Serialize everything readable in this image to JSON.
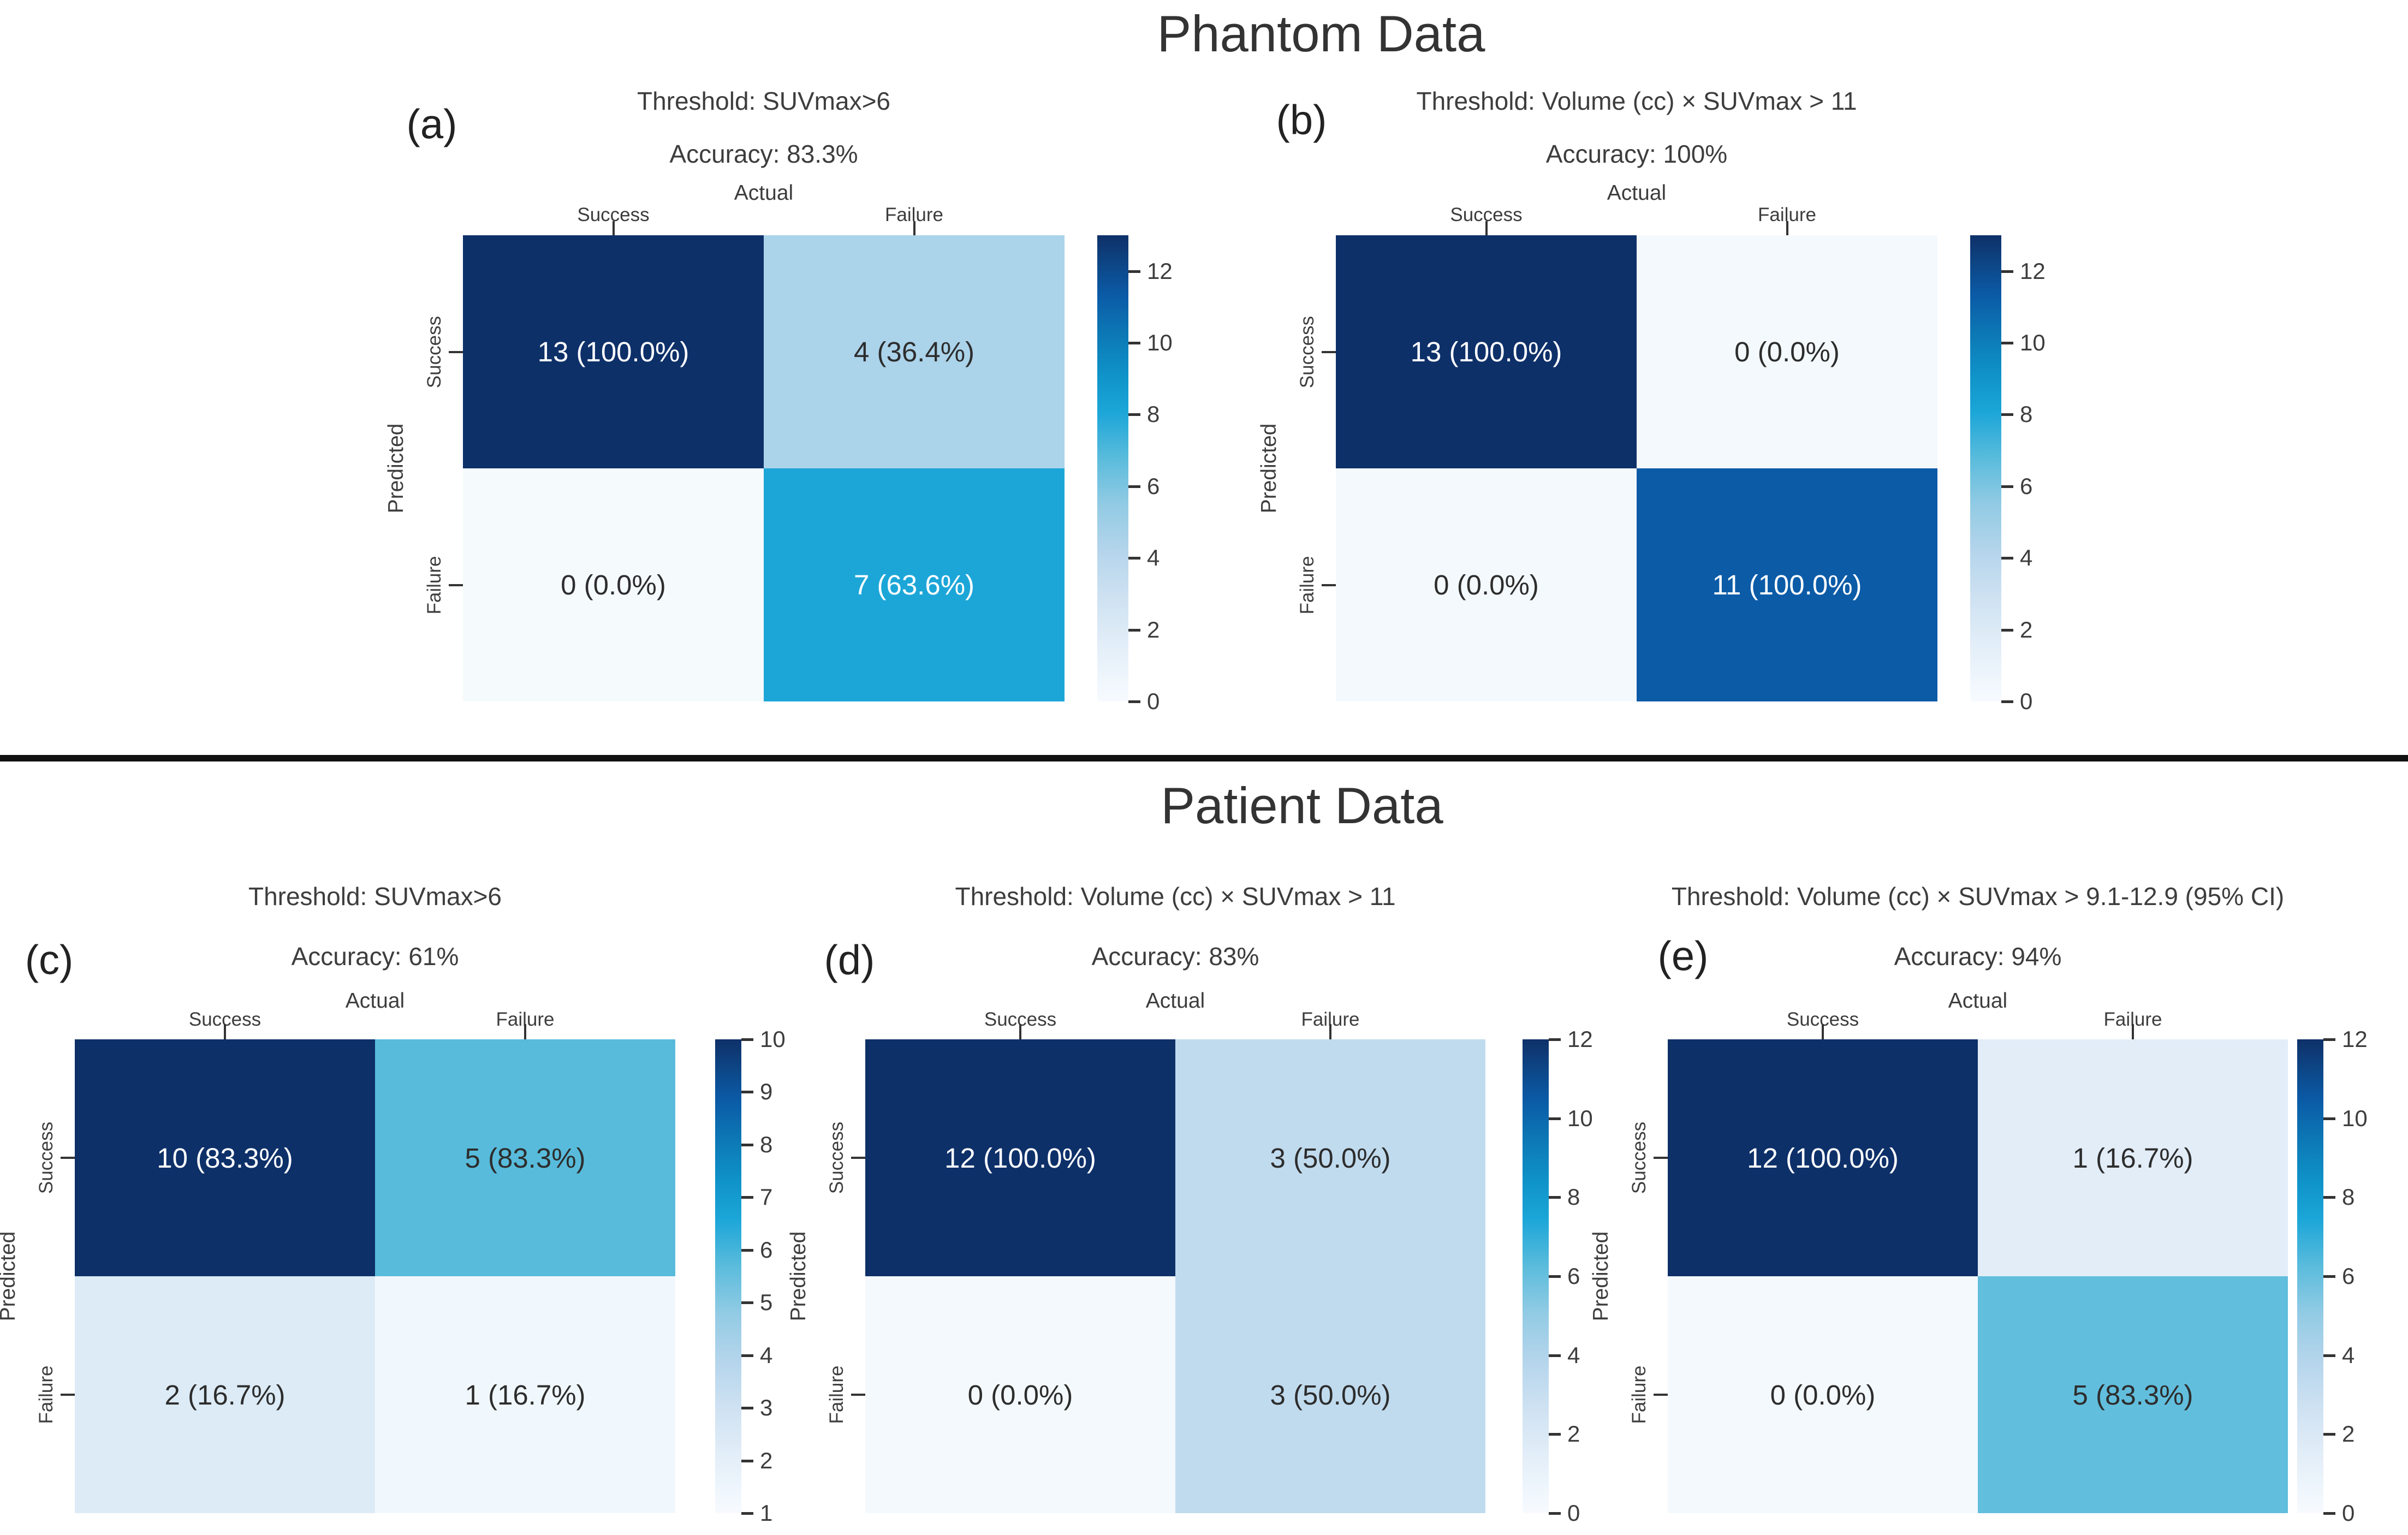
{
  "sections": [
    {
      "title": "Phantom Data"
    },
    {
      "title": "Patient Data"
    }
  ],
  "axis": {
    "actual": "Actual",
    "predicted": "Predicted",
    "col_labels": [
      "Success",
      "Failure"
    ],
    "row_labels": [
      "Success",
      "Failure"
    ]
  },
  "panels": [
    {
      "id": "a",
      "label": "(a)",
      "threshold": "Threshold: SUVmax>6",
      "accuracy": "Accuracy: 83.3%",
      "cells": [
        [
          {
            "text": "13 (100.0%)",
            "bg": "#0e3069",
            "fg": "#ffffff"
          },
          {
            "text": "4 (36.4%)",
            "bg": "#abd3ea",
            "fg": "#2d2d2d"
          }
        ],
        [
          {
            "text": "0 (0.0%)",
            "bg": "#f5fafd",
            "fg": "#2d2d2d"
          },
          {
            "text": "7 (63.6%)",
            "bg": "#1ca6d8",
            "fg": "#ffffff"
          }
        ]
      ],
      "colorbar": {
        "top_value": 13,
        "bottom_value": 0,
        "ticks": [
          12,
          10,
          8,
          6,
          4,
          2,
          0
        ]
      }
    },
    {
      "id": "b",
      "label": "(b)",
      "threshold": "Threshold: Volume (cc) × SUVmax > 11",
      "accuracy": "Accuracy: 100%",
      "cells": [
        [
          {
            "text": "13 (100.0%)",
            "bg": "#0e3069",
            "fg": "#ffffff"
          },
          {
            "text": "0 (0.0%)",
            "bg": "#f4f9fd",
            "fg": "#2d2d2d"
          }
        ],
        [
          {
            "text": "0 (0.0%)",
            "bg": "#f4f9fd",
            "fg": "#2d2d2d"
          },
          {
            "text": "11 (100.0%)",
            "bg": "#0b5ba7",
            "fg": "#ffffff"
          }
        ]
      ],
      "colorbar": {
        "top_value": 13,
        "bottom_value": 0,
        "ticks": [
          12,
          10,
          8,
          6,
          4,
          2,
          0
        ]
      }
    },
    {
      "id": "c",
      "label": "(c)",
      "threshold": "Threshold: SUVmax>6",
      "accuracy": "Accuracy: 61%",
      "cells": [
        [
          {
            "text": "10 (83.3%)",
            "bg": "#0e3069",
            "fg": "#ffffff"
          },
          {
            "text": "5 (83.3%)",
            "bg": "#58bbdb",
            "fg": "#2d2d2d"
          }
        ],
        [
          {
            "text": "2 (16.7%)",
            "bg": "#dcebf6",
            "fg": "#2d2d2d"
          },
          {
            "text": "1 (16.7%)",
            "bg": "#f1f8fd",
            "fg": "#2d2d2d"
          }
        ]
      ],
      "colorbar": {
        "top_value": 10,
        "bottom_value": 1,
        "ticks": [
          10,
          9,
          8,
          7,
          6,
          5,
          4,
          3,
          2,
          1
        ]
      }
    },
    {
      "id": "d",
      "label": "(d)",
      "threshold": "Threshold: Volume (cc) × SUVmax > 11",
      "accuracy": "Accuracy: 83%",
      "cells": [
        [
          {
            "text": "12 (100.0%)",
            "bg": "#0e3069",
            "fg": "#ffffff"
          },
          {
            "text": "3 (50.0%)",
            "bg": "#c1dbee",
            "fg": "#2d2d2d"
          }
        ],
        [
          {
            "text": "0 (0.0%)",
            "bg": "#f4f9fd",
            "fg": "#2d2d2d"
          },
          {
            "text": "3 (50.0%)",
            "bg": "#c1dbee",
            "fg": "#2d2d2d"
          }
        ]
      ],
      "colorbar": {
        "top_value": 12,
        "bottom_value": 0,
        "ticks": [
          12,
          10,
          8,
          6,
          4,
          2,
          0
        ]
      }
    },
    {
      "id": "e",
      "label": "(e)",
      "threshold": "Threshold: Volume (cc) × SUVmax > 9.1-12.9 (95% CI)",
      "accuracy": "Accuracy: 94%",
      "cells": [
        [
          {
            "text": "12 (100.0%)",
            "bg": "#0e3069",
            "fg": "#ffffff"
          },
          {
            "text": "1 (16.7%)",
            "bg": "#e2edf8",
            "fg": "#2d2d2d"
          }
        ],
        [
          {
            "text": "0 (0.0%)",
            "bg": "#f4f9fd",
            "fg": "#2d2d2d"
          },
          {
            "text": "5 (83.3%)",
            "bg": "#62bedd",
            "fg": "#2d2d2d"
          }
        ]
      ],
      "colorbar": {
        "top_value": 12,
        "bottom_value": 0,
        "ticks": [
          12,
          10,
          8,
          6,
          4,
          2,
          0
        ]
      }
    }
  ],
  "chart_data": [
    {
      "type": "heatmap",
      "panel": "(a)",
      "section": "Phantom Data",
      "title": "Threshold: SUVmax>6",
      "subtitle": "Accuracy: 83.3%",
      "xlabel": "Actual",
      "ylabel": "Predicted",
      "x_categories": [
        "Success",
        "Failure"
      ],
      "y_categories": [
        "Success",
        "Failure"
      ],
      "values": [
        [
          13,
          4
        ],
        [
          0,
          7
        ]
      ],
      "cell_labels": [
        [
          "13 (100.0%)",
          "4 (36.4%)"
        ],
        [
          "0 (0.0%)",
          "7 (63.6%)"
        ]
      ],
      "colorbar": {
        "vmin": 0,
        "vmax": 13,
        "ticks": [
          0,
          2,
          4,
          6,
          8,
          10,
          12
        ]
      },
      "colormap": [
        "#f7fbff",
        "#1ca6d8",
        "#0e3069"
      ]
    },
    {
      "type": "heatmap",
      "panel": "(b)",
      "section": "Phantom Data",
      "title": "Threshold: Volume (cc) × SUVmax > 11",
      "subtitle": "Accuracy: 100%",
      "xlabel": "Actual",
      "ylabel": "Predicted",
      "x_categories": [
        "Success",
        "Failure"
      ],
      "y_categories": [
        "Success",
        "Failure"
      ],
      "values": [
        [
          13,
          0
        ],
        [
          0,
          11
        ]
      ],
      "cell_labels": [
        [
          "13 (100.0%)",
          "0 (0.0%)"
        ],
        [
          "0 (0.0%)",
          "11 (100.0%)"
        ]
      ],
      "colorbar": {
        "vmin": 0,
        "vmax": 13,
        "ticks": [
          0,
          2,
          4,
          6,
          8,
          10,
          12
        ]
      },
      "colormap": [
        "#f7fbff",
        "#1ca6d8",
        "#0e3069"
      ]
    },
    {
      "type": "heatmap",
      "panel": "(c)",
      "section": "Patient Data",
      "title": "Threshold: SUVmax>6",
      "subtitle": "Accuracy: 61%",
      "xlabel": "Actual",
      "ylabel": "Predicted",
      "x_categories": [
        "Success",
        "Failure"
      ],
      "y_categories": [
        "Success",
        "Failure"
      ],
      "values": [
        [
          10,
          5
        ],
        [
          2,
          1
        ]
      ],
      "cell_labels": [
        [
          "10 (83.3%)",
          "5 (83.3%)"
        ],
        [
          "2 (16.7%)",
          "1 (16.7%)"
        ]
      ],
      "colorbar": {
        "vmin": 1,
        "vmax": 10,
        "ticks": [
          1,
          2,
          3,
          4,
          5,
          6,
          7,
          8,
          9,
          10
        ]
      },
      "colormap": [
        "#f7fbff",
        "#1ca6d8",
        "#0e3069"
      ]
    },
    {
      "type": "heatmap",
      "panel": "(d)",
      "section": "Patient Data",
      "title": "Threshold: Volume (cc) × SUVmax > 11",
      "subtitle": "Accuracy: 83%",
      "xlabel": "Actual",
      "ylabel": "Predicted",
      "x_categories": [
        "Success",
        "Failure"
      ],
      "y_categories": [
        "Success",
        "Failure"
      ],
      "values": [
        [
          12,
          3
        ],
        [
          0,
          3
        ]
      ],
      "cell_labels": [
        [
          "12 (100.0%)",
          "3 (50.0%)"
        ],
        [
          "0 (0.0%)",
          "3 (50.0%)"
        ]
      ],
      "colorbar": {
        "vmin": 0,
        "vmax": 12,
        "ticks": [
          0,
          2,
          4,
          6,
          8,
          10,
          12
        ]
      },
      "colormap": [
        "#f7fbff",
        "#1ca6d8",
        "#0e3069"
      ]
    },
    {
      "type": "heatmap",
      "panel": "(e)",
      "section": "Patient Data",
      "title": "Threshold: Volume (cc) × SUVmax > 9.1-12.9 (95% CI)",
      "subtitle": "Accuracy: 94%",
      "xlabel": "Actual",
      "ylabel": "Predicted",
      "x_categories": [
        "Success",
        "Failure"
      ],
      "y_categories": [
        "Success",
        "Failure"
      ],
      "values": [
        [
          12,
          1
        ],
        [
          0,
          5
        ]
      ],
      "cell_labels": [
        [
          "12 (100.0%)",
          "1 (16.7%)"
        ],
        [
          "0 (0.0%)",
          "5 (83.3%)"
        ]
      ],
      "colorbar": {
        "vmin": 0,
        "vmax": 12,
        "ticks": [
          0,
          2,
          4,
          6,
          8,
          10,
          12
        ]
      },
      "colormap": [
        "#f7fbff",
        "#1ca6d8",
        "#0e3069"
      ]
    }
  ]
}
